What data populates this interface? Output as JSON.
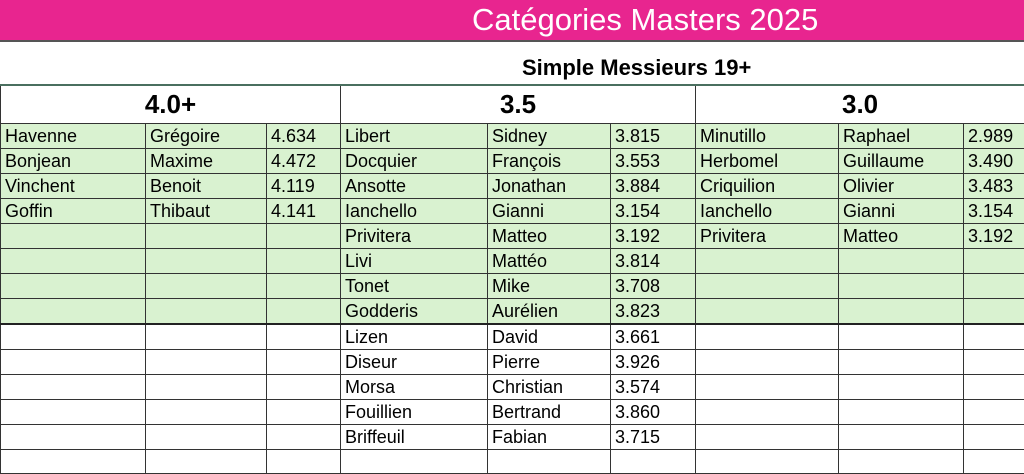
{
  "banner": {
    "title": "Catégories Masters 2025",
    "color": "#e8258f"
  },
  "subtitle": "Simple Messieurs 19+",
  "groups": [
    {
      "label": "4.0+",
      "players": [
        [
          "Havenne",
          "Grégoire",
          "4.634"
        ],
        [
          "Bonjean",
          "Maxime",
          "4.472"
        ],
        [
          "Vinchent",
          "Benoit",
          "4.119"
        ],
        [
          "Goffin",
          "Thibaut",
          "4.141"
        ]
      ]
    },
    {
      "label": "3.5",
      "players": [
        [
          "Libert",
          "Sidney",
          "3.815"
        ],
        [
          "Docquier",
          "François",
          "3.553"
        ],
        [
          "Ansotte",
          "Jonathan",
          "3.884"
        ],
        [
          "Ianchello",
          "Gianni",
          "3.154"
        ],
        [
          "Privitera",
          "Matteo",
          "3.192"
        ],
        [
          "Livi",
          "Mattéo",
          "3.814"
        ],
        [
          "Tonet",
          "Mike",
          "3.708"
        ],
        [
          "Godderis",
          "Aurélien",
          "3.823"
        ],
        [
          "Lizen",
          "David",
          "3.661"
        ],
        [
          "Diseur",
          "Pierre",
          "3.926"
        ],
        [
          "Morsa",
          "Christian",
          "3.574"
        ],
        [
          "Fouillien",
          "Bertrand",
          "3.860"
        ],
        [
          "Briffeuil",
          "Fabian",
          "3.715"
        ]
      ]
    },
    {
      "label": "3.0",
      "players": [
        [
          "Minutillo",
          "Raphael",
          "2.989"
        ],
        [
          "Herbomel",
          "Guillaume",
          "3.490"
        ],
        [
          "Criquilion",
          "Olivier",
          "3.483"
        ],
        [
          "Ianchello",
          "Gianni",
          "3.154"
        ],
        [
          "Privitera",
          "Matteo",
          "3.192"
        ]
      ]
    }
  ],
  "highlight_color": "#d9f2d0"
}
